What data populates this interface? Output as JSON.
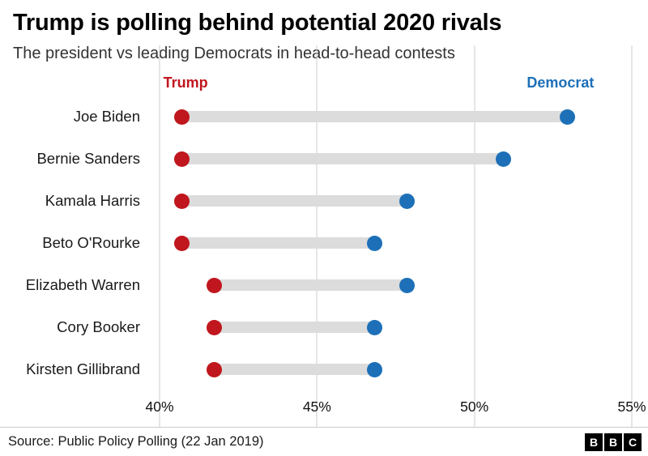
{
  "header": {
    "title": "Trump is polling behind potential 2020 rivals",
    "subtitle": "The president vs leading Democrats in head-to-head contests"
  },
  "chart_data": {
    "type": "dumbbell",
    "title": "Trump is polling behind potential 2020 rivals",
    "subtitle": "The president vs leading Democrats in head-to-head contests",
    "categories": [
      "Joe Biden",
      "Bernie Sanders",
      "Kamala Harris",
      "Beto O'Rourke",
      "Elizabeth Warren",
      "Cory Booker",
      "Kirsten Gillibrand"
    ],
    "series": [
      {
        "name": "Trump",
        "values": [
          41,
          41,
          41,
          41,
          42,
          42,
          42
        ]
      },
      {
        "name": "Democrat",
        "values": [
          53,
          51,
          48,
          47,
          48,
          47,
          47
        ]
      }
    ],
    "series_labels": {
      "trump": "Trump",
      "democrat": "Democrat"
    },
    "colors": {
      "trump": "#c0161d",
      "democrat": "#1d70b8",
      "connector": "#dcdcdc",
      "grid": "#cccccc"
    },
    "x_axis": {
      "min": 40,
      "max": 55,
      "tick_values": [
        40,
        45,
        50,
        55
      ],
      "tick_labels": [
        "40%",
        "45%",
        "50%",
        "55%"
      ]
    },
    "legend_position": "top-inline",
    "grid": true
  },
  "footer": {
    "source": "Source: Public Policy Polling (22 Jan 2019)",
    "logo_letters": [
      "B",
      "B",
      "C"
    ]
  }
}
